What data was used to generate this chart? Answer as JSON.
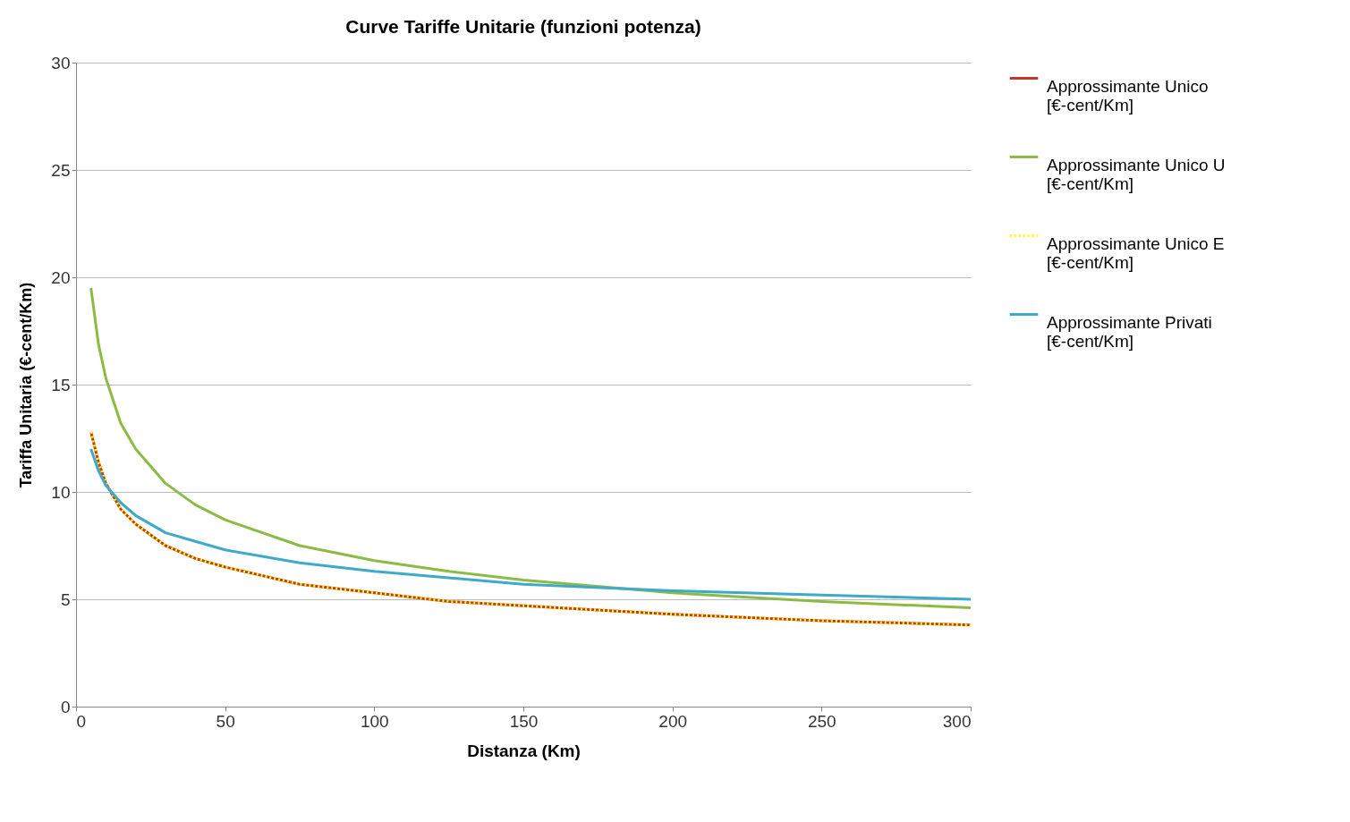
{
  "chart_data": {
    "type": "line",
    "title": "Curve Tariffe Unitarie (funzioni potenza)",
    "xlabel": "Distanza  (Km)",
    "ylabel": "Tariffa Unitaria (€-cent/Km)",
    "x": [
      5,
      7.5,
      10,
      15,
      20,
      30,
      40,
      50,
      75,
      100,
      125,
      150,
      200,
      250,
      300
    ],
    "series": [
      {
        "name": "Approssimante Unico [€-cent/Km]",
        "color": "#c0392b",
        "line_style": "solid",
        "values": [
          12.8,
          11.4,
          10.4,
          9.2,
          8.5,
          7.5,
          6.9,
          6.5,
          5.7,
          5.3,
          4.9,
          4.7,
          4.3,
          4.0,
          3.8
        ]
      },
      {
        "name": "Approssimante Unico U [€-cent/Km]",
        "color": "#8cbb45",
        "line_style": "solid",
        "values": [
          19.5,
          16.9,
          15.3,
          13.2,
          12.0,
          10.4,
          9.4,
          8.7,
          7.5,
          6.8,
          6.3,
          5.9,
          5.3,
          4.9,
          4.6
        ]
      },
      {
        "name": "Approssimante Unico E [€-cent/Km]",
        "color": "#ffff00",
        "line_style": "dotted",
        "values": [
          12.8,
          11.4,
          10.4,
          9.2,
          8.5,
          7.5,
          6.9,
          6.5,
          5.7,
          5.3,
          4.9,
          4.7,
          4.3,
          4.0,
          3.8
        ]
      },
      {
        "name": "Approssimante Privati [€-cent/Km]",
        "color": "#3fa9c9",
        "line_style": "solid",
        "values": [
          12.0,
          11.0,
          10.3,
          9.5,
          8.9,
          8.1,
          7.7,
          7.3,
          6.7,
          6.3,
          6.0,
          5.7,
          5.4,
          5.2,
          5.0
        ]
      }
    ],
    "xlim": [
      0,
      300
    ],
    "xticks": [
      0,
      50,
      100,
      150,
      200,
      250,
      300
    ],
    "ylim": [
      0,
      30
    ],
    "yticks": [
      0,
      5,
      10,
      15,
      20,
      25,
      30
    ],
    "grid": "y",
    "legend": "right",
    "marker": "none"
  }
}
